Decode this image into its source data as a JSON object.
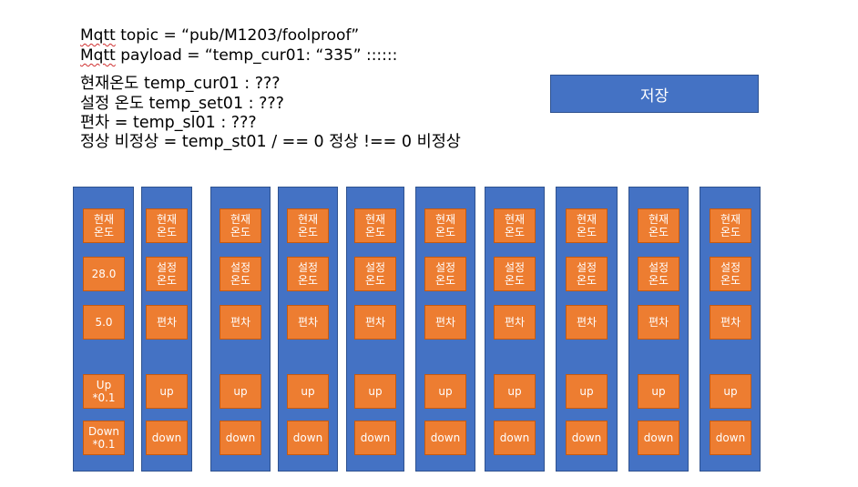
{
  "notes": {
    "mqtt_word": "Mqtt",
    "topic_rest": " topic = “pub/M1203/foolproof”",
    "payload_rest": " payload = “temp_cur01: “335” ::::::",
    "line_cur": "현재온도 temp_cur01 : ???",
    "line_set": "설정 온도 temp_set01 : ???",
    "line_sl": "편차 = temp_sl01 : ???",
    "line_st": "정상 비정상 = temp_st01 / == 0 정상 !== 0  비정상"
  },
  "save_button": {
    "label": "저장"
  },
  "colors": {
    "panel": "#4472c4",
    "cell": "#ed7d31",
    "text": "#ffffff"
  },
  "panels": [
    {
      "cur": "현재\n온도",
      "set": "28.0",
      "sl": "5.0",
      "up": "Up\n*0.1",
      "down": "Down\n*0.1"
    },
    {
      "cur": "현재\n온도",
      "set": "설정\n온도",
      "sl": "편차",
      "up": "up",
      "down": "down"
    },
    {
      "cur": "현재\n온도",
      "set": "설정\n온도",
      "sl": "편차",
      "up": "up",
      "down": "down"
    },
    {
      "cur": "현재\n온도",
      "set": "설정\n온도",
      "sl": "편차",
      "up": "up",
      "down": "down"
    },
    {
      "cur": "현재\n온도",
      "set": "설정\n온도",
      "sl": "편차",
      "up": "up",
      "down": "down"
    },
    {
      "cur": "현재\n온도",
      "set": "설정\n온도",
      "sl": "편차",
      "up": "up",
      "down": "down"
    },
    {
      "cur": "현재\n온도",
      "set": "설정\n온도",
      "sl": "편차",
      "up": "up",
      "down": "down"
    },
    {
      "cur": "현재\n온도",
      "set": "설정\n온도",
      "sl": "편차",
      "up": "up",
      "down": "down"
    },
    {
      "cur": "현재\n온도",
      "set": "설정\n온도",
      "sl": "편차",
      "up": "up",
      "down": "down"
    },
    {
      "cur": "현재\n온도",
      "set": "설정\n온도",
      "sl": "편차",
      "up": "up",
      "down": "down"
    }
  ]
}
